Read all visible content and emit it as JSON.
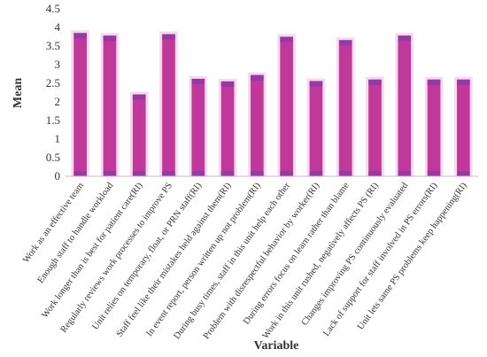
{
  "chart_data": {
    "type": "bar",
    "xlabel": "Variable",
    "ylabel": "Mean",
    "ylim": [
      0,
      4.5
    ],
    "yticks": [
      "0",
      "0.5",
      "1",
      "1.5",
      "2",
      "2.5",
      "3",
      "3.5",
      "4",
      "4.5"
    ],
    "grid": false,
    "colors": {
      "bar": "#c0399a",
      "bar_band": "#8e3aa8",
      "bar_glow": "#f3c9e6"
    },
    "categories": [
      "Work as an effective team",
      "Enough staff to handle workload",
      "Work longer than is best for patient care(RI)",
      "Regularly reviews work processes to improve PS",
      "Unit relies on temporary, float, or PRN staff(RI)",
      "Staff feel like their mistakes held against them(RI)",
      "In event report, person written up not problem(RI)",
      "During busy times, staff in this unit help each other",
      "Problem with disrespectful behavior by worker(RI)",
      "During errors focus on learn rather than blame",
      "Work in this unit rushed, negatively affects PS (RI)",
      "Changes improving PS continuously evaluated",
      "Lack of support for staff involved in PS errors(RI)",
      "Unit lets same PS problems keep happening(RI)"
    ],
    "values": [
      3.85,
      3.78,
      2.2,
      3.82,
      2.62,
      2.55,
      2.72,
      3.75,
      2.56,
      3.66,
      2.6,
      3.78,
      2.6,
      2.6
    ]
  }
}
